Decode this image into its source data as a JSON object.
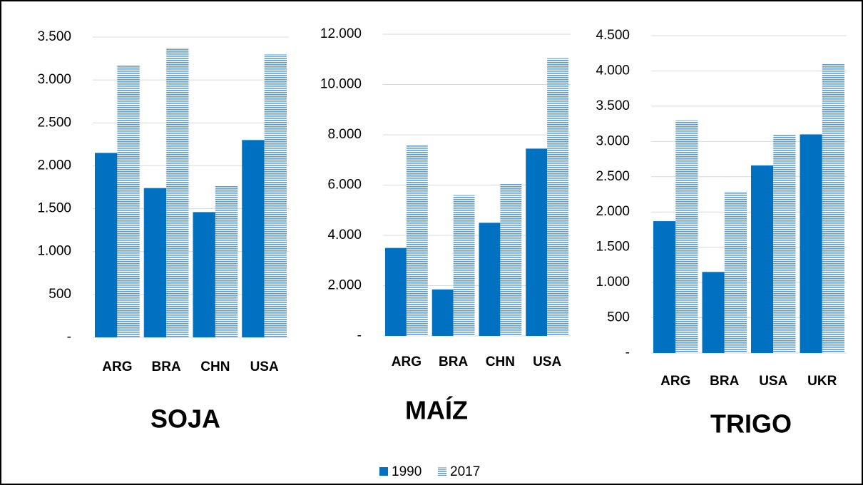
{
  "chart_data": [
    {
      "type": "bar",
      "title": "SOJA",
      "categories": [
        "ARG",
        "BRA",
        "CHN",
        "USA"
      ],
      "series": [
        {
          "name": "1990",
          "color": "#0070c0",
          "values": [
            2150,
            1740,
            1460,
            2300
          ]
        },
        {
          "name": "2017",
          "color": "#5b9bd5",
          "pattern": "horizontal",
          "values": [
            3175,
            3375,
            1770,
            3300
          ]
        }
      ],
      "ylim": [
        0,
        3500
      ],
      "yticks": [
        {
          "value": 0,
          "label": "-"
        },
        500,
        {
          "value": 1000,
          "label": "1.000"
        },
        {
          "value": 1500,
          "label": "1.500"
        },
        {
          "value": 2000,
          "label": "2.000"
        },
        {
          "value": 2500,
          "label": "2.500"
        },
        {
          "value": 3000,
          "label": "3.000"
        },
        {
          "value": 3500,
          "label": "3.500"
        }
      ],
      "grid": true
    },
    {
      "type": "bar",
      "title": "MAÍZ",
      "categories": [
        "ARG",
        "BRA",
        "CHN",
        "USA"
      ],
      "series": [
        {
          "name": "1990",
          "color": "#0070c0",
          "values": [
            3500,
            1850,
            4500,
            7450
          ]
        },
        {
          "name": "2017",
          "color": "#5b9bd5",
          "pattern": "horizontal",
          "values": [
            7600,
            5600,
            6070,
            11050
          ]
        }
      ],
      "ylim": [
        0,
        12000
      ],
      "yticks": [
        {
          "value": 0,
          "label": "-"
        },
        {
          "value": 2000,
          "label": "2.000"
        },
        {
          "value": 4000,
          "label": "4.000"
        },
        {
          "value": 6000,
          "label": "6.000"
        },
        {
          "value": 8000,
          "label": "8.000"
        },
        {
          "value": 10000,
          "label": "10.000"
        },
        {
          "value": 12000,
          "label": "12.000"
        }
      ],
      "grid": true
    },
    {
      "type": "bar",
      "title": "TRIGO",
      "categories": [
        "ARG",
        "BRA",
        "USA",
        "UKR"
      ],
      "series": [
        {
          "name": "1990",
          "color": "#0070c0",
          "values": [
            1870,
            1150,
            2660,
            3100
          ]
        },
        {
          "name": "2017",
          "color": "#5b9bd5",
          "pattern": "horizontal",
          "values": [
            3300,
            2280,
            3100,
            4100
          ]
        }
      ],
      "ylim": [
        0,
        4500
      ],
      "yticks": [
        {
          "value": 0,
          "label": "-"
        },
        500,
        {
          "value": 1000,
          "label": "1.000"
        },
        {
          "value": 1500,
          "label": "1.500"
        },
        {
          "value": 2000,
          "label": "2.000"
        },
        {
          "value": 2500,
          "label": "2.500"
        },
        {
          "value": 3000,
          "label": "3.000"
        },
        {
          "value": 3500,
          "label": "3.500"
        },
        {
          "value": 4000,
          "label": "4.000"
        },
        {
          "value": 4500,
          "label": "4.500"
        }
      ],
      "grid": true
    }
  ]
}
